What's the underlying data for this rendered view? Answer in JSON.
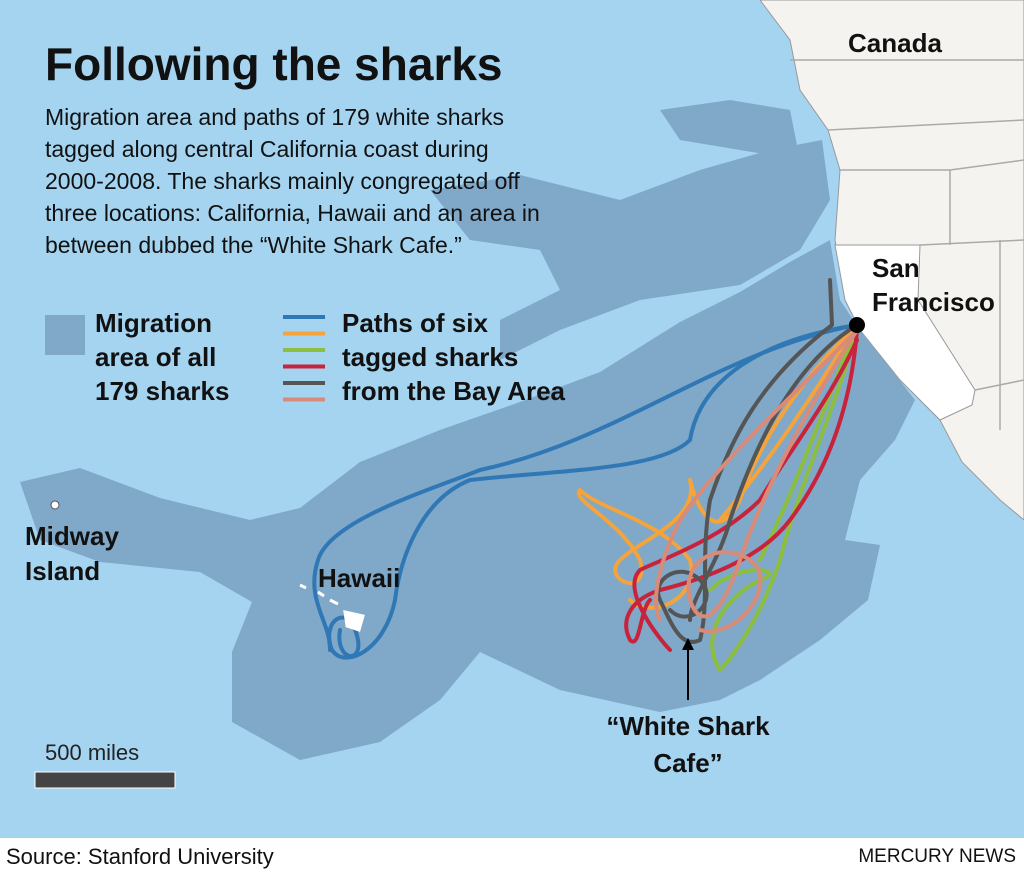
{
  "title": "Following the sharks",
  "subtitle": [
    "Migration area and paths of 179 white sharks",
    "tagged along central California coast during",
    "2000-2008. The sharks mainly congregated off",
    "three locations: California, Hawaii and an area in",
    "between dubbed the “White Shark Cafe.”"
  ],
  "legend": {
    "area": {
      "lines": [
        "Migration",
        "area of all",
        "179 sharks"
      ],
      "color": "#7fa8c9"
    },
    "paths": {
      "lines": [
        "Paths of six",
        "tagged sharks",
        "from the Bay Area"
      ],
      "colors": [
        "#2f78b5",
        "#f5a33b",
        "#8cbf3f",
        "#c8233b",
        "#555555",
        "#d98b7a"
      ]
    }
  },
  "labels": {
    "canada": "Canada",
    "san_francisco": [
      "San",
      "Francisco"
    ],
    "midway": [
      "Midway",
      "Island"
    ],
    "hawaii": "Hawaii",
    "cafe": [
      "“White Shark",
      "Cafe”"
    ]
  },
  "scale": "500 miles",
  "source": "Source: Stanford University",
  "credit": "MERCURY NEWS"
}
